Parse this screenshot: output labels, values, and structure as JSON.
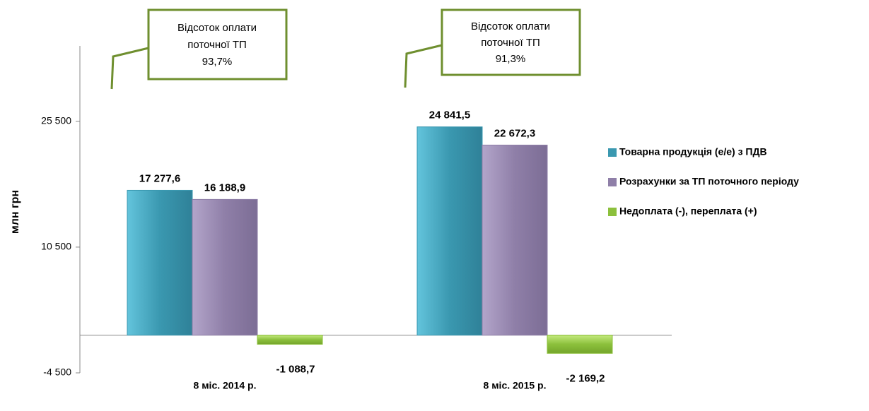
{
  "chart_data": {
    "type": "bar",
    "y_label": "млн грн",
    "categories": [
      "8 міс. 2014 р.",
      "8 міс. 2015 р."
    ],
    "series": [
      {
        "name": "Товарна продукція (е/е) з ПДВ",
        "color": "#3a98b0",
        "values": [
          17277.6,
          24841.5
        ],
        "value_labels": [
          "17 277,6",
          "24 841,5"
        ]
      },
      {
        "name": "Розрахунки за ТП поточного періоду",
        "color": "#8f7fa8",
        "values": [
          16188.9,
          22672.3
        ],
        "value_labels": [
          "16 188,9",
          "22 672,3"
        ]
      },
      {
        "name": "Недоплата (-), переплата (+)",
        "color": "#8cc03c",
        "values": [
          -1088.7,
          -2169.2
        ],
        "value_labels": [
          "-1 088,7",
          "-2 169,2"
        ]
      }
    ],
    "ylim": [
      -4500,
      34500
    ],
    "yticks": [
      {
        "value": -4500,
        "label": "-4 500"
      },
      {
        "value": 10500,
        "label": "10 500"
      },
      {
        "value": 25500,
        "label": "25 500"
      }
    ],
    "legend": "right",
    "annotations": [
      [
        "Відсоток оплати",
        "поточної ТП",
        "93,7%"
      ],
      [
        "Відсоток оплати",
        "поточної ТП",
        "91,3%"
      ]
    ]
  }
}
